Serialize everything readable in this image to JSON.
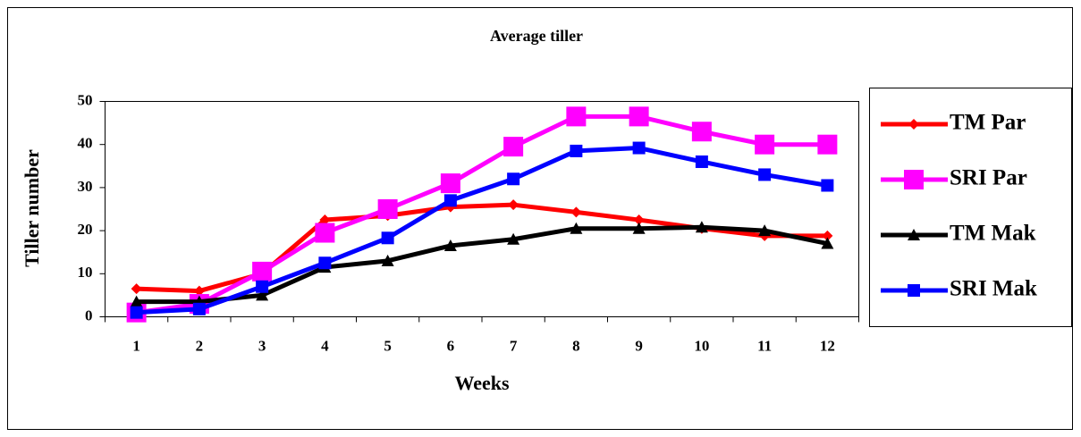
{
  "chart_data": {
    "type": "line",
    "title": "Average tiller",
    "x_label": "Weeks",
    "y_label": "Tiller number",
    "categories": [
      "1",
      "2",
      "3",
      "4",
      "5",
      "6",
      "7",
      "8",
      "9",
      "10",
      "11",
      "12"
    ],
    "ylim": [
      0,
      50
    ],
    "yticks": [
      0,
      10,
      20,
      30,
      40,
      50
    ],
    "grid": false,
    "legend": "right",
    "series": [
      {
        "name": "TM Par",
        "color": "#ff0000",
        "marker": "diamond",
        "values": [
          6.5,
          6,
          10,
          22.5,
          23.5,
          25.5,
          26,
          24.3,
          22.5,
          20.5,
          18.8,
          18.8
        ]
      },
      {
        "name": "SRI Par",
        "color": "#ff00ff",
        "marker": "big-square",
        "values": [
          1,
          3,
          10.5,
          19.5,
          25,
          31,
          39.5,
          46.5,
          46.5,
          43,
          40,
          40
        ]
      },
      {
        "name": "TM Mak",
        "color": "#000000",
        "marker": "triangle",
        "values": [
          3.5,
          3.5,
          5,
          11.5,
          13,
          16.5,
          18,
          20.5,
          20.5,
          20.8,
          20,
          17
        ]
      },
      {
        "name": "SRI Mak",
        "color": "#0000ff",
        "marker": "square",
        "values": [
          1,
          1.8,
          7,
          12.5,
          18.3,
          27,
          32,
          38.5,
          39.2,
          36,
          33,
          30.5
        ]
      }
    ]
  }
}
